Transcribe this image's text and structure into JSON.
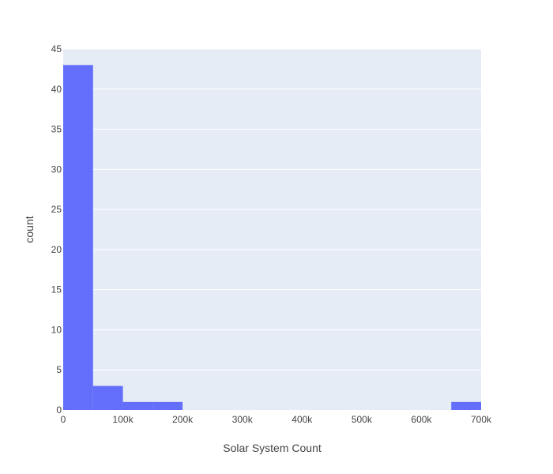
{
  "chart_data": {
    "type": "bar",
    "title": "",
    "xlabel": "Solar System Count",
    "ylabel": "count",
    "xlim": [
      0,
      700000
    ],
    "ylim": [
      0,
      45
    ],
    "bin_size": 50000,
    "bins": [
      {
        "start": 0,
        "end": 50000,
        "count": 43
      },
      {
        "start": 50000,
        "end": 100000,
        "count": 3
      },
      {
        "start": 100000,
        "end": 150000,
        "count": 1
      },
      {
        "start": 150000,
        "end": 200000,
        "count": 1
      },
      {
        "start": 200000,
        "end": 250000,
        "count": 0
      },
      {
        "start": 250000,
        "end": 300000,
        "count": 0
      },
      {
        "start": 300000,
        "end": 350000,
        "count": 0
      },
      {
        "start": 350000,
        "end": 400000,
        "count": 0
      },
      {
        "start": 400000,
        "end": 450000,
        "count": 0
      },
      {
        "start": 450000,
        "end": 500000,
        "count": 0
      },
      {
        "start": 500000,
        "end": 550000,
        "count": 0
      },
      {
        "start": 550000,
        "end": 600000,
        "count": 0
      },
      {
        "start": 600000,
        "end": 650000,
        "count": 0
      },
      {
        "start": 650000,
        "end": 700000,
        "count": 1
      }
    ],
    "x_ticks": [
      {
        "value": 0,
        "label": "0"
      },
      {
        "value": 100000,
        "label": "100k"
      },
      {
        "value": 200000,
        "label": "200k"
      },
      {
        "value": 300000,
        "label": "300k"
      },
      {
        "value": 400000,
        "label": "400k"
      },
      {
        "value": 500000,
        "label": "500k"
      },
      {
        "value": 600000,
        "label": "600k"
      },
      {
        "value": 700000,
        "label": "700k"
      }
    ],
    "y_ticks": [
      {
        "value": 0,
        "label": "0"
      },
      {
        "value": 5,
        "label": "5"
      },
      {
        "value": 10,
        "label": "10"
      },
      {
        "value": 15,
        "label": "15"
      },
      {
        "value": 20,
        "label": "20"
      },
      {
        "value": 25,
        "label": "25"
      },
      {
        "value": 30,
        "label": "30"
      },
      {
        "value": 35,
        "label": "35"
      },
      {
        "value": 40,
        "label": "40"
      },
      {
        "value": 45,
        "label": "45"
      }
    ],
    "grid": true,
    "legend": false,
    "colors": {
      "bar": "#636efa",
      "plot_background": "#e5ecf6",
      "gridline": "#ffffff",
      "text": "#444444"
    }
  }
}
